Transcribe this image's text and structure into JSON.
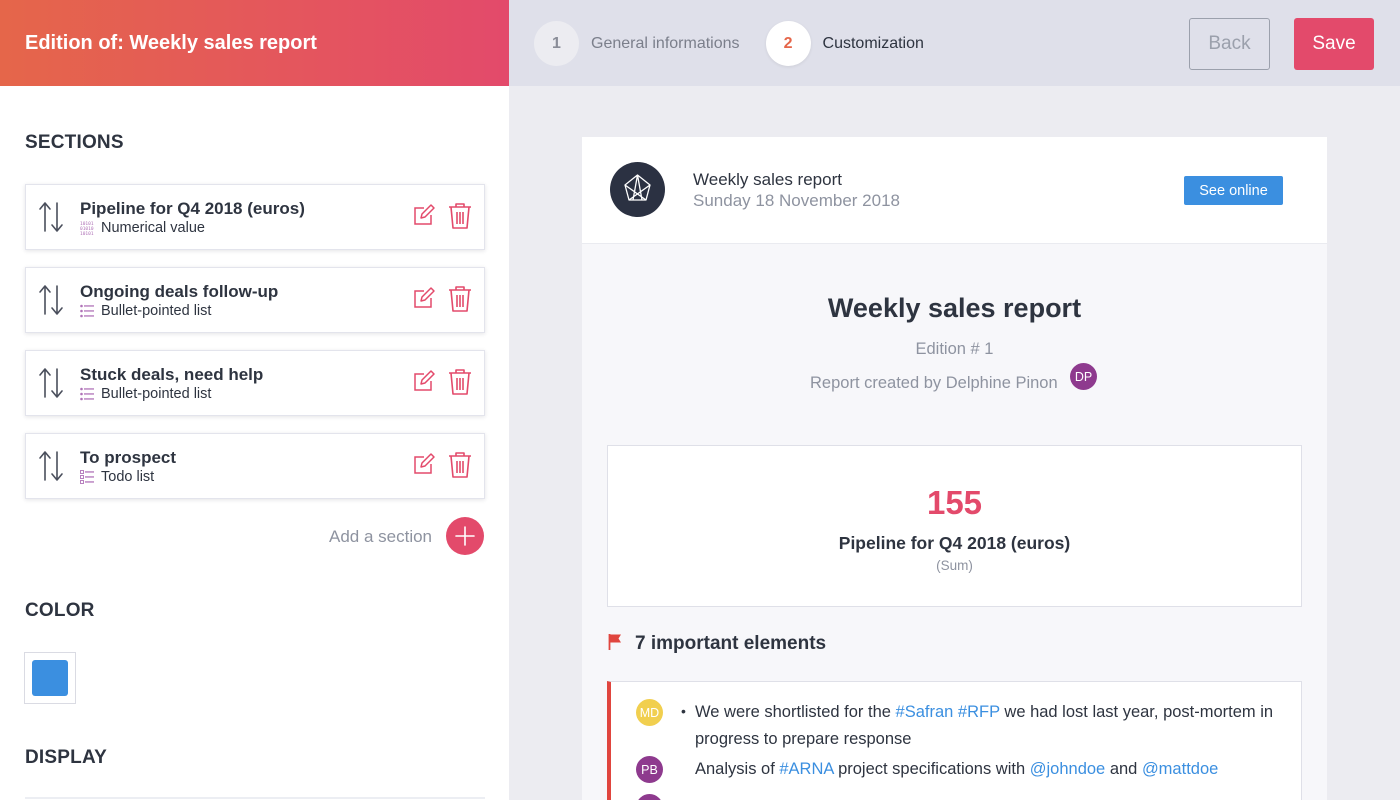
{
  "header": {
    "title": "Edition of: Weekly sales report",
    "steps": [
      {
        "num": "1",
        "label": "General informations"
      },
      {
        "num": "2",
        "label": "Customization"
      }
    ],
    "back_label": "Back",
    "save_label": "Save"
  },
  "left": {
    "sections_heading": "SECTIONS",
    "sections": [
      {
        "title": "Pipeline for Q4 2018 (euros)",
        "type": "Numerical value",
        "type_icon": "binary-icon"
      },
      {
        "title": "Ongoing deals follow-up",
        "type": "Bullet-pointed list",
        "type_icon": "list-icon"
      },
      {
        "title": "Stuck deals, need help",
        "type": "Bullet-pointed list",
        "type_icon": "list-icon"
      },
      {
        "title": "To prospect",
        "type": "Todo list",
        "type_icon": "checklist-icon"
      }
    ],
    "add_section_label": "Add a section",
    "color_heading": "COLOR",
    "selected_color": "#3b8fe0",
    "display_heading": "DISPLAY"
  },
  "preview": {
    "header_title": "Weekly sales report",
    "header_date": "Sunday 18 November 2018",
    "see_online_label": "See online",
    "report_title": "Weekly sales report",
    "edition": "Edition # 1",
    "created_by": "Report created by Delphine Pinon",
    "author_initials": "DP",
    "metric": {
      "value": "155",
      "label": "Pipeline for Q4 2018 (euros)",
      "aggregation": "(Sum)"
    },
    "important_title": "7 important elements",
    "important_items": [
      {
        "initials": "MD",
        "avatar_color": "#f1cf4f",
        "parts": [
          "We were shortlisted for the ",
          "#Safran",
          " ",
          "#RFP",
          " we had lost last year, post-mortem in progress to prepare response"
        ]
      },
      {
        "initials": "PB",
        "avatar_color": "#8e3a8e",
        "parts": [
          "Analysis of ",
          "#ARNA",
          " project specifications with ",
          "@johndoe",
          " and ",
          "@mattdoe"
        ]
      }
    ]
  },
  "colors": {
    "accent": "#e34a6b",
    "brand_gradient_start": "#e5664a",
    "link": "#3b8fe0",
    "author_avatar": "#8e3a8e"
  }
}
